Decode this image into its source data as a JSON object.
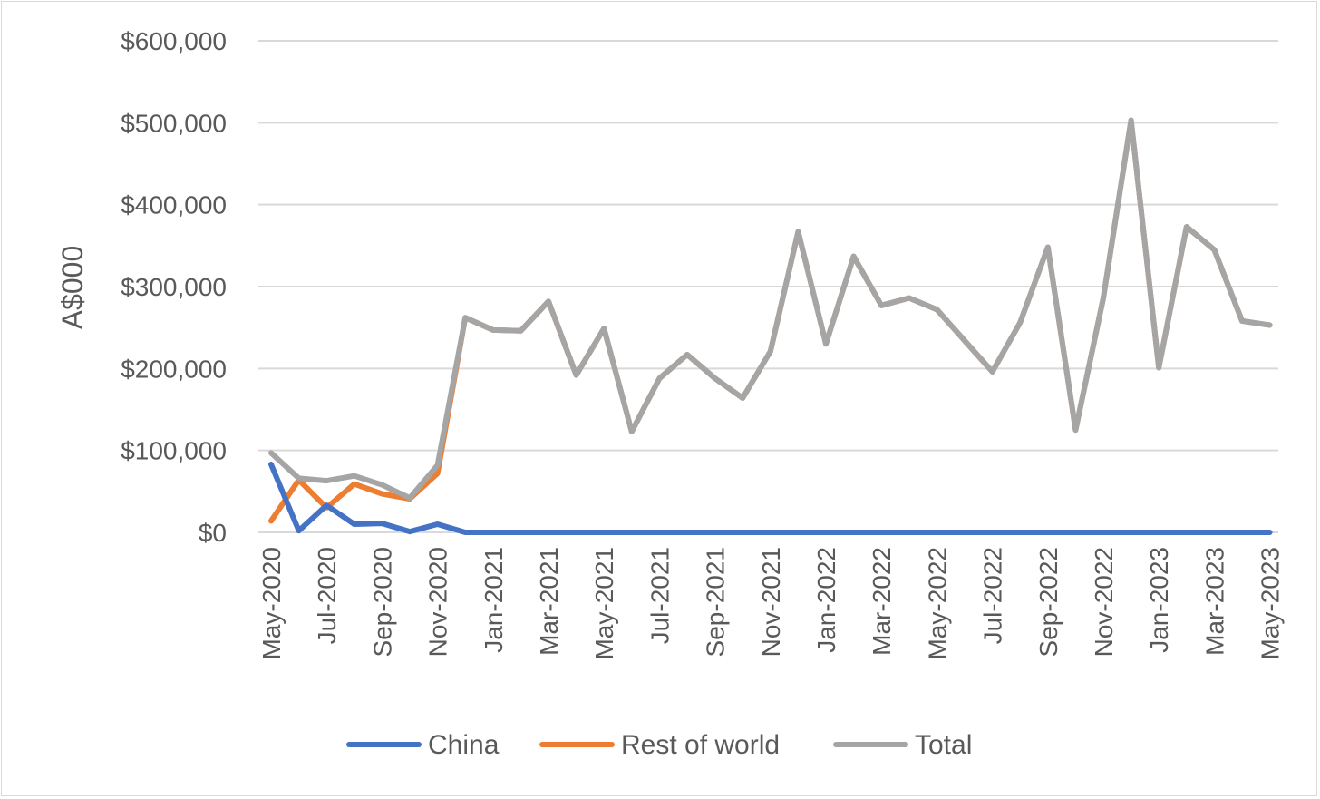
{
  "chart_data": {
    "type": "line",
    "ylabel": "A$000",
    "xlabel": "",
    "title": "",
    "ylim": [
      0,
      600000
    ],
    "y_ticks": [
      0,
      100000,
      200000,
      300000,
      400000,
      500000,
      600000
    ],
    "y_tick_labels": [
      "$0",
      "$100,000",
      "$200,000",
      "$300,000",
      "$400,000",
      "$500,000",
      "$600,000"
    ],
    "x": [
      "May-2020",
      "Jun-2020",
      "Jul-2020",
      "Aug-2020",
      "Sep-2020",
      "Oct-2020",
      "Nov-2020",
      "Dec-2020",
      "Jan-2021",
      "Feb-2021",
      "Mar-2021",
      "Apr-2021",
      "May-2021",
      "Jun-2021",
      "Jul-2021",
      "Aug-2021",
      "Sep-2021",
      "Oct-2021",
      "Nov-2021",
      "Dec-2021",
      "Jan-2022",
      "Feb-2022",
      "Mar-2022",
      "Apr-2022",
      "May-2022",
      "Jun-2022",
      "Jul-2022",
      "Aug-2022",
      "Sep-2022",
      "Oct-2022",
      "Nov-2022",
      "Dec-2022",
      "Jan-2023",
      "Feb-2023",
      "Mar-2023",
      "Apr-2023",
      "May-2023"
    ],
    "x_tick_labels": [
      "May-2020",
      "Jul-2020",
      "Sep-2020",
      "Nov-2020",
      "Jan-2021",
      "Mar-2021",
      "May-2021",
      "Jul-2021",
      "Sep-2021",
      "Nov-2021",
      "Jan-2022",
      "Mar-2022",
      "May-2022",
      "Jul-2022",
      "Sep-2022",
      "Nov-2022",
      "Jan-2023",
      "Mar-2023",
      "May-2023"
    ],
    "grid": true,
    "legend_position": "bottom",
    "series": [
      {
        "name": "China",
        "color": "#4472C4",
        "values": [
          83000,
          2000,
          33000,
          10000,
          11000,
          1000,
          10000,
          0,
          0,
          0,
          0,
          0,
          0,
          0,
          0,
          0,
          0,
          0,
          0,
          0,
          0,
          0,
          0,
          0,
          0,
          0,
          0,
          0,
          0,
          0,
          0,
          0,
          0,
          0,
          0,
          0,
          0
        ]
      },
      {
        "name": "Rest of world",
        "color": "#ED7D31",
        "values": [
          14000,
          64000,
          30000,
          59000,
          47000,
          41000,
          72000,
          262000,
          247000,
          246000,
          282000,
          192000,
          249000,
          123000,
          188000,
          217000,
          188000,
          164000,
          221000,
          367000,
          230000,
          337000,
          277000,
          286000,
          272000,
          234000,
          196000,
          256000,
          348000,
          125000,
          286000,
          503000,
          201000,
          373000,
          345000,
          258000,
          253000
        ]
      },
      {
        "name": "Total",
        "color": "#A5A5A5",
        "values": [
          97000,
          66000,
          63000,
          69000,
          58000,
          42000,
          82000,
          262000,
          247000,
          246000,
          282000,
          192000,
          249000,
          123000,
          188000,
          217000,
          188000,
          164000,
          221000,
          367000,
          230000,
          337000,
          277000,
          286000,
          272000,
          234000,
          196000,
          256000,
          348000,
          125000,
          286000,
          503000,
          201000,
          373000,
          345000,
          258000,
          253000
        ]
      }
    ]
  }
}
